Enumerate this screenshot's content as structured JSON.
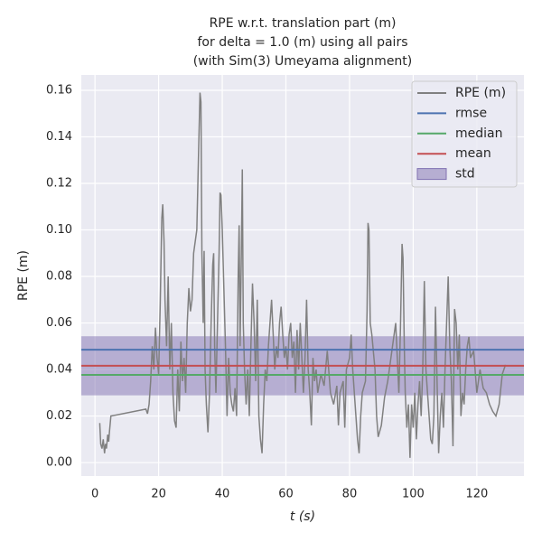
{
  "chart_data": {
    "type": "line",
    "title": [
      "RPE w.r.t. translation part (m)",
      "for delta = 1.0 (m) using all pairs",
      "(with Sim(3) Umeyama alignment)"
    ],
    "x_label": "t (s)",
    "y_label": "RPE (m)",
    "x": [
      1.5,
      1.8,
      2.2,
      2.6,
      3,
      3.3,
      3.6,
      4,
      4.3,
      4.6,
      5,
      16,
      16.5,
      17,
      17.5,
      18,
      18.5,
      19,
      19.5,
      20,
      20.5,
      21,
      21.3,
      21.7,
      22,
      22.5,
      23,
      23.5,
      24,
      24.5,
      25,
      25.5,
      26,
      26.5,
      27,
      27.5,
      28,
      28.5,
      29,
      29.5,
      30,
      30.5,
      31,
      31.5,
      32,
      32.5,
      33,
      33.3,
      33.6,
      34,
      34.3,
      34.6,
      35,
      35.5,
      36,
      36.5,
      37,
      37.3,
      37.6,
      38,
      38.5,
      39,
      39.3,
      39.6,
      40,
      40.5,
      41,
      41.5,
      42,
      42.5,
      43,
      43.5,
      44,
      44.5,
      45,
      45.3,
      45.6,
      46,
      46.3,
      46.6,
      47,
      47.5,
      48,
      48.5,
      49,
      49.5,
      50,
      50.5,
      51,
      51.5,
      52,
      52.5,
      53,
      53.5,
      54,
      54.5,
      55,
      55.5,
      56,
      56.5,
      57,
      57.5,
      58,
      58.5,
      59,
      59.5,
      60,
      60.5,
      61,
      61.5,
      62,
      62.5,
      63,
      63.5,
      64,
      64.5,
      65,
      65.5,
      66,
      66.5,
      67,
      67.5,
      68,
      68.5,
      69,
      69.5,
      70,
      71,
      72,
      73,
      74,
      75,
      76,
      76.5,
      77,
      78,
      78.5,
      79,
      80,
      80.5,
      81,
      82,
      82.5,
      83,
      83.5,
      84,
      85,
      85.5,
      85.8,
      86.1,
      86.5,
      87,
      88,
      88.5,
      89,
      90,
      91,
      92,
      93,
      94,
      94.5,
      95,
      95.5,
      96,
      96.5,
      96.8,
      97.2,
      97.5,
      98,
      98.5,
      99,
      99.5,
      100,
      100.5,
      101,
      101.5,
      102,
      102.5,
      103,
      103.5,
      104,
      104.5,
      105,
      105.5,
      106,
      106.5,
      107,
      107.5,
      108,
      108.5,
      109,
      109.5,
      110,
      110.5,
      111,
      111.5,
      112,
      112.5,
      113,
      113.5,
      114,
      114.5,
      115,
      115.5,
      116,
      116.5,
      117,
      117.5,
      118,
      119,
      120,
      121,
      122,
      123,
      124,
      125,
      126,
      127,
      128,
      129
    ],
    "series": [
      {
        "name": "RPE (m)",
        "color": "#808080",
        "values": [
          0.017,
          0.008,
          0.006,
          0.01,
          0.004,
          0.008,
          0.006,
          0.012,
          0.009,
          0.014,
          0.02,
          0.023,
          0.021,
          0.025,
          0.035,
          0.05,
          0.04,
          0.058,
          0.045,
          0.038,
          0.068,
          0.105,
          0.111,
          0.095,
          0.07,
          0.05,
          0.08,
          0.04,
          0.06,
          0.03,
          0.018,
          0.015,
          0.04,
          0.022,
          0.052,
          0.035,
          0.045,
          0.03,
          0.06,
          0.075,
          0.065,
          0.07,
          0.09,
          0.095,
          0.1,
          0.13,
          0.159,
          0.155,
          0.09,
          0.06,
          0.091,
          0.04,
          0.025,
          0.013,
          0.03,
          0.06,
          0.085,
          0.09,
          0.05,
          0.03,
          0.06,
          0.09,
          0.116,
          0.115,
          0.1,
          0.075,
          0.05,
          0.02,
          0.045,
          0.03,
          0.025,
          0.022,
          0.032,
          0.02,
          0.08,
          0.102,
          0.05,
          0.09,
          0.126,
          0.06,
          0.04,
          0.025,
          0.04,
          0.02,
          0.05,
          0.077,
          0.06,
          0.035,
          0.07,
          0.02,
          0.01,
          0.004,
          0.025,
          0.04,
          0.035,
          0.05,
          0.06,
          0.07,
          0.055,
          0.04,
          0.05,
          0.045,
          0.06,
          0.067,
          0.055,
          0.045,
          0.05,
          0.04,
          0.055,
          0.06,
          0.045,
          0.052,
          0.03,
          0.057,
          0.04,
          0.06,
          0.045,
          0.03,
          0.045,
          0.07,
          0.04,
          0.03,
          0.016,
          0.045,
          0.035,
          0.04,
          0.03,
          0.038,
          0.033,
          0.048,
          0.03,
          0.025,
          0.033,
          0.016,
          0.03,
          0.035,
          0.015,
          0.04,
          0.045,
          0.055,
          0.04,
          0.02,
          0.01,
          0.004,
          0.02,
          0.03,
          0.035,
          0.065,
          0.103,
          0.1,
          0.06,
          0.055,
          0.04,
          0.02,
          0.011,
          0.016,
          0.028,
          0.035,
          0.045,
          0.055,
          0.06,
          0.045,
          0.03,
          0.058,
          0.094,
          0.088,
          0.05,
          0.03,
          0.015,
          0.025,
          0.002,
          0.025,
          0.015,
          0.03,
          0.01,
          0.025,
          0.035,
          0.02,
          0.04,
          0.078,
          0.04,
          0.03,
          0.02,
          0.01,
          0.008,
          0.02,
          0.067,
          0.035,
          0.004,
          0.02,
          0.03,
          0.015,
          0.04,
          0.06,
          0.08,
          0.05,
          0.035,
          0.007,
          0.066,
          0.06,
          0.04,
          0.055,
          0.02,
          0.03,
          0.025,
          0.04,
          0.05,
          0.054,
          0.045,
          0.048,
          0.03,
          0.04,
          0.032,
          0.03,
          0.025,
          0.022,
          0.02,
          0.025,
          0.038,
          0.042
        ]
      }
    ],
    "stats": [
      {
        "name": "rmse",
        "color": "#4c72b0",
        "value": 0.0485
      },
      {
        "name": "median",
        "color": "#55a868",
        "value": 0.0377
      },
      {
        "name": "mean",
        "color": "#c44e52",
        "value": 0.0416
      }
    ],
    "std": {
      "name": "std",
      "color": "#8172b2",
      "value": 0.0127
    },
    "xlim": [
      -4.3,
      134.8
    ],
    "ylim": [
      -0.0058,
      0.1666
    ],
    "xticks": [
      0,
      20,
      40,
      60,
      80,
      100,
      120
    ],
    "yticks": [
      {
        "value": 0,
        "label": "0.00"
      },
      0.02,
      0.04,
      0.06,
      0.08,
      {
        "value": 0.1,
        "label": "0.10"
      },
      0.12,
      0.14,
      0.16
    ],
    "grid": true,
    "legend": "upper right"
  }
}
